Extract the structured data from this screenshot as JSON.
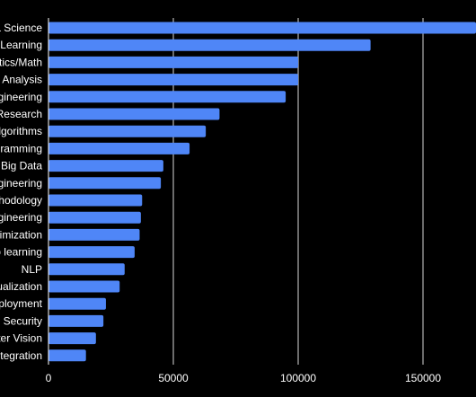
{
  "chart_data": {
    "type": "bar",
    "orientation": "horizontal",
    "categories": [
      "a Science",
      "Learning",
      "tics/Math",
      "Analysis",
      "gineering",
      "Research",
      "lgorithms",
      "gramming",
      "Big Data",
      "gineering",
      "hodology",
      "gineering",
      "timization",
      "p learning",
      "NLP",
      "ualization",
      "ployment",
      "Security",
      "ter Vision",
      "tegration"
    ],
    "values": [
      172000,
      129000,
      100000,
      100000,
      95000,
      68500,
      63000,
      56500,
      46000,
      45000,
      37500,
      37000,
      36500,
      34500,
      30500,
      28500,
      23000,
      22000,
      19000,
      15000
    ],
    "x_ticks": [
      "0",
      "50000",
      "100000",
      "150000"
    ],
    "x_tick_values": [
      0,
      50000,
      100000,
      150000
    ],
    "xlim": [
      0,
      171000
    ],
    "grid": "vertical",
    "colors": {
      "background": "#000000",
      "bar": "#4f86f7",
      "text": "#ffffff",
      "grid": "#ffffff",
      "axis": "#ffffff"
    }
  }
}
